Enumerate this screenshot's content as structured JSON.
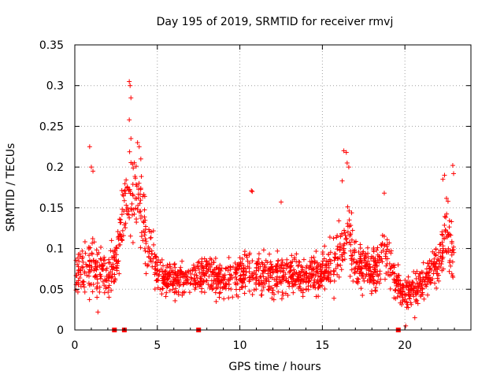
{
  "chart_data": {
    "type": "scatter",
    "title": "Day 195 of 2019, SRMTID for receiver rmvj",
    "xlabel": "GPS time / hours",
    "ylabel": "SRMTID / TECUs",
    "xlim": [
      0,
      24
    ],
    "ylim": [
      0,
      0.35
    ],
    "grid": true,
    "marker": "+",
    "color": "#ff0000",
    "xticks": [
      0,
      5,
      10,
      15,
      20
    ],
    "xtick_labels": [
      "0",
      "5",
      "10",
      "15",
      "20"
    ],
    "yticks": [
      0,
      0.05,
      0.1,
      0.15,
      0.2,
      0.25,
      0.3,
      0.35
    ],
    "ytick_labels": [
      "0",
      "0.05",
      "0.1",
      "0.15",
      "0.2",
      "0.25",
      "0.3",
      "0.35"
    ],
    "zero_markers": [
      2.4,
      3.0,
      7.5,
      19.6
    ],
    "envelope": [
      {
        "x": 0.0,
        "y": 0.07,
        "spread": 0.025
      },
      {
        "x": 0.5,
        "y": 0.075,
        "spread": 0.03
      },
      {
        "x": 1.0,
        "y": 0.08,
        "spread": 0.04
      },
      {
        "x": 1.5,
        "y": 0.075,
        "spread": 0.035
      },
      {
        "x": 2.0,
        "y": 0.07,
        "spread": 0.03
      },
      {
        "x": 2.5,
        "y": 0.08,
        "spread": 0.03
      },
      {
        "x": 3.0,
        "y": 0.15,
        "spread": 0.05
      },
      {
        "x": 3.5,
        "y": 0.17,
        "spread": 0.06
      },
      {
        "x": 4.0,
        "y": 0.15,
        "spread": 0.05
      },
      {
        "x": 4.5,
        "y": 0.1,
        "spread": 0.04
      },
      {
        "x": 5.0,
        "y": 0.07,
        "spread": 0.025
      },
      {
        "x": 6.0,
        "y": 0.06,
        "spread": 0.02
      },
      {
        "x": 7.0,
        "y": 0.065,
        "spread": 0.02
      },
      {
        "x": 8.0,
        "y": 0.07,
        "spread": 0.025
      },
      {
        "x": 9.0,
        "y": 0.06,
        "spread": 0.025
      },
      {
        "x": 10.0,
        "y": 0.07,
        "spread": 0.025
      },
      {
        "x": 11.0,
        "y": 0.07,
        "spread": 0.03
      },
      {
        "x": 12.0,
        "y": 0.065,
        "spread": 0.025
      },
      {
        "x": 13.0,
        "y": 0.07,
        "spread": 0.025
      },
      {
        "x": 14.0,
        "y": 0.065,
        "spread": 0.025
      },
      {
        "x": 15.0,
        "y": 0.07,
        "spread": 0.025
      },
      {
        "x": 16.0,
        "y": 0.09,
        "spread": 0.04
      },
      {
        "x": 16.5,
        "y": 0.12,
        "spread": 0.05
      },
      {
        "x": 17.0,
        "y": 0.08,
        "spread": 0.03
      },
      {
        "x": 18.0,
        "y": 0.07,
        "spread": 0.025
      },
      {
        "x": 18.8,
        "y": 0.09,
        "spread": 0.035
      },
      {
        "x": 19.5,
        "y": 0.06,
        "spread": 0.025
      },
      {
        "x": 20.0,
        "y": 0.045,
        "spread": 0.02
      },
      {
        "x": 21.0,
        "y": 0.055,
        "spread": 0.02
      },
      {
        "x": 22.0,
        "y": 0.08,
        "spread": 0.03
      },
      {
        "x": 22.5,
        "y": 0.12,
        "spread": 0.04
      },
      {
        "x": 23.0,
        "y": 0.09,
        "spread": 0.04
      }
    ],
    "outliers": [
      {
        "x": 0.9,
        "y": 0.225
      },
      {
        "x": 1.0,
        "y": 0.2
      },
      {
        "x": 1.1,
        "y": 0.195
      },
      {
        "x": 3.3,
        "y": 0.305
      },
      {
        "x": 3.35,
        "y": 0.3
      },
      {
        "x": 3.4,
        "y": 0.285
      },
      {
        "x": 3.3,
        "y": 0.258
      },
      {
        "x": 3.4,
        "y": 0.235
      },
      {
        "x": 3.8,
        "y": 0.23
      },
      {
        "x": 3.9,
        "y": 0.225
      },
      {
        "x": 4.0,
        "y": 0.21
      },
      {
        "x": 10.7,
        "y": 0.171
      },
      {
        "x": 10.75,
        "y": 0.17
      },
      {
        "x": 12.5,
        "y": 0.157
      },
      {
        "x": 16.3,
        "y": 0.22
      },
      {
        "x": 16.45,
        "y": 0.218
      },
      {
        "x": 16.5,
        "y": 0.205
      },
      {
        "x": 16.6,
        "y": 0.2
      },
      {
        "x": 16.2,
        "y": 0.183
      },
      {
        "x": 18.75,
        "y": 0.168
      },
      {
        "x": 22.3,
        "y": 0.185
      },
      {
        "x": 22.4,
        "y": 0.19
      },
      {
        "x": 22.9,
        "y": 0.202
      },
      {
        "x": 22.95,
        "y": 0.192
      },
      {
        "x": 20.05,
        "y": 0.005
      },
      {
        "x": 1.4,
        "y": 0.022
      },
      {
        "x": 20.6,
        "y": 0.015
      }
    ]
  }
}
